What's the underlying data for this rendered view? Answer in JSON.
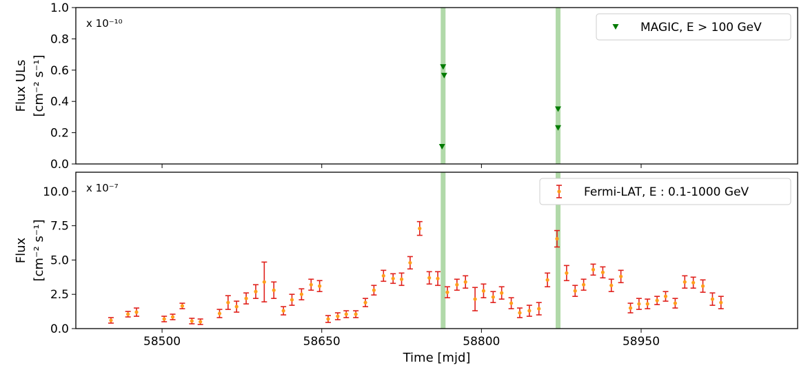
{
  "chart_data": [
    {
      "type": "scatter",
      "ylabel_lines": [
        "Flux ULs",
        "[cm⁻² s⁻¹]"
      ],
      "scale_label": "x 10⁻¹⁰",
      "xlim": [
        58419,
        59097
      ],
      "xticks": [
        58500,
        58650,
        58800,
        58950
      ],
      "ylim": [
        0,
        1.0
      ],
      "yticks": [
        {
          "value": 0,
          "label": "0.0"
        },
        0.2,
        0.4,
        0.6,
        0.8,
        {
          "value": 1,
          "label": "1.0"
        }
      ],
      "bands": [
        58764,
        58872
      ],
      "band_color": "#a8d5a0",
      "legend": "upper right",
      "series": [
        {
          "name": "MAGIC, E > 100 GeV",
          "color": "#007a00",
          "marker": "triangle-down",
          "x": [
            58764,
            58765,
            58763,
            58872,
            58872
          ],
          "values": [
            0.62,
            0.565,
            0.11,
            0.35,
            0.23
          ]
        }
      ]
    },
    {
      "type": "errorbar",
      "ylabel_lines": [
        "Flux",
        "[cm⁻² s⁻¹]"
      ],
      "scale_label": "x 10⁻⁷",
      "xlabel": "Time [mjd]",
      "xlim": [
        58419,
        59097
      ],
      "xticks": [
        58500,
        58650,
        58800,
        58950
      ],
      "ylim": [
        0,
        11.4
      ],
      "yticks": [
        {
          "value": 0,
          "label": "0.0"
        },
        2.5,
        {
          "value": 5,
          "label": "5.0"
        },
        7.5,
        {
          "value": 10,
          "label": "10.0"
        }
      ],
      "bands": [
        58764,
        58872
      ],
      "band_color": "#a8d5a0",
      "legend": "upper right",
      "series": [
        {
          "name": "Fermi-LAT, E : 0.1-1000 GeV",
          "color": "#ff9f1c",
          "error_color": "#e0201b",
          "x": [
            58452,
            58468,
            58476,
            58502,
            58510,
            58519,
            58528,
            58536,
            58554,
            58562,
            58570,
            58579,
            58588,
            58596,
            58605,
            58614,
            58622,
            58631,
            58640,
            58648,
            58656,
            58665,
            58673,
            58682,
            58691,
            58699,
            58708,
            58717,
            58725,
            58733,
            58742,
            58751,
            58759,
            58768,
            58777,
            58785,
            58794,
            58802,
            58811,
            58819,
            58828,
            58836,
            58845,
            58854,
            58862,
            58871,
            58880,
            58888,
            58896,
            58905,
            58914,
            58922,
            58931,
            58940,
            58948,
            58956,
            58965,
            58973,
            58982,
            58991,
            58999,
            59008,
            59017,
            59025
          ],
          "values": [
            0.6,
            1.05,
            1.2,
            0.7,
            0.85,
            1.65,
            0.55,
            0.5,
            1.1,
            1.9,
            1.6,
            2.2,
            2.7,
            3.4,
            2.8,
            1.3,
            2.1,
            2.5,
            3.2,
            3.1,
            0.7,
            0.9,
            1.05,
            1.05,
            1.9,
            2.8,
            3.85,
            3.65,
            3.6,
            4.8,
            7.3,
            3.7,
            3.65,
            2.65,
            3.2,
            3.4,
            2.15,
            2.75,
            2.3,
            2.6,
            1.85,
            1.15,
            1.3,
            1.45,
            3.55,
            6.55,
            4.05,
            2.75,
            3.2,
            4.3,
            4.1,
            3.15,
            3.8,
            1.5,
            1.8,
            1.8,
            2.05,
            2.35,
            1.85,
            3.4,
            3.35,
            3.1,
            2.15,
            1.9
          ],
          "errors": [
            0.2,
            0.2,
            0.3,
            0.2,
            0.2,
            0.2,
            0.2,
            0.2,
            0.3,
            0.5,
            0.4,
            0.4,
            0.5,
            1.45,
            0.6,
            0.3,
            0.4,
            0.4,
            0.4,
            0.4,
            0.25,
            0.25,
            0.25,
            0.25,
            0.3,
            0.35,
            0.4,
            0.35,
            0.45,
            0.45,
            0.5,
            0.45,
            0.5,
            0.4,
            0.4,
            0.45,
            0.85,
            0.5,
            0.4,
            0.45,
            0.4,
            0.35,
            0.4,
            0.45,
            0.5,
            0.6,
            0.55,
            0.4,
            0.4,
            0.4,
            0.4,
            0.45,
            0.45,
            0.35,
            0.4,
            0.35,
            0.3,
            0.35,
            0.35,
            0.45,
            0.4,
            0.45,
            0.45,
            0.45
          ]
        }
      ]
    }
  ]
}
